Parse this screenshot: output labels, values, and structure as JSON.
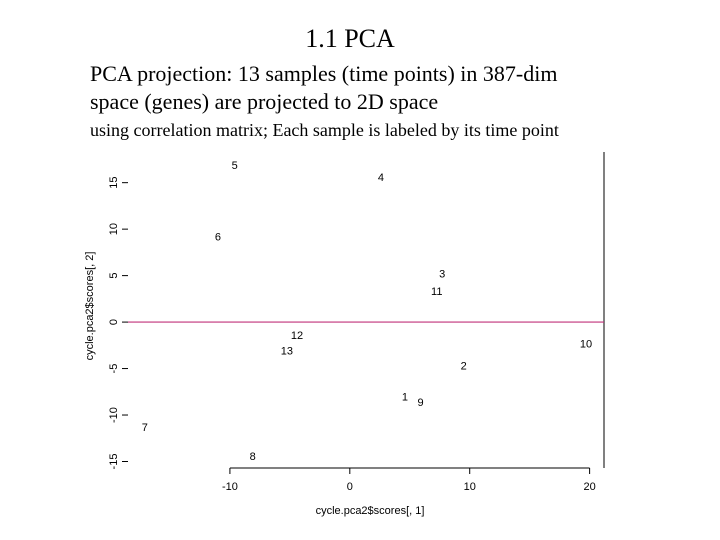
{
  "slide": {
    "title": "1.1 PCA",
    "lines": [
      "PCA projection: 13 samples (time points) in 387-dim",
      "space (genes) are projected to 2D space"
    ],
    "note": "using correlation matrix; Each sample is labeled by its time point"
  },
  "chart_data": {
    "type": "scatter",
    "x_label": "cycle.pca2$scores[, 1]",
    "y_label": "cycle.pca2$scores[, 2]",
    "xlim": [
      -18.5,
      21.2
    ],
    "ylim": [
      -15.7,
      18.3
    ],
    "xticks": [
      -10,
      0,
      10,
      20
    ],
    "yticks": [
      -15,
      -10,
      -5,
      0,
      5,
      10,
      15
    ],
    "hline": 0,
    "hline_color": "#c0307a",
    "series": [
      {
        "color": "#000000",
        "labels": [
          "5",
          "4",
          "6",
          "3",
          "11",
          "12",
          "13",
          "10",
          "2",
          "1",
          "9",
          "7",
          "8"
        ],
        "x": [
          -9.6,
          2.6,
          -11,
          7.7,
          7.25,
          -4.4,
          -5.25,
          19.7,
          9.5,
          4.6,
          5.9,
          -17.1,
          -8.1
        ],
        "values": [
          16.8,
          15.5,
          9.1,
          5.1,
          3.2,
          -1.5,
          -3.2,
          -2.4,
          -4.8,
          -8.1,
          -8.7,
          -11.4,
          -14.5
        ]
      }
    ]
  }
}
